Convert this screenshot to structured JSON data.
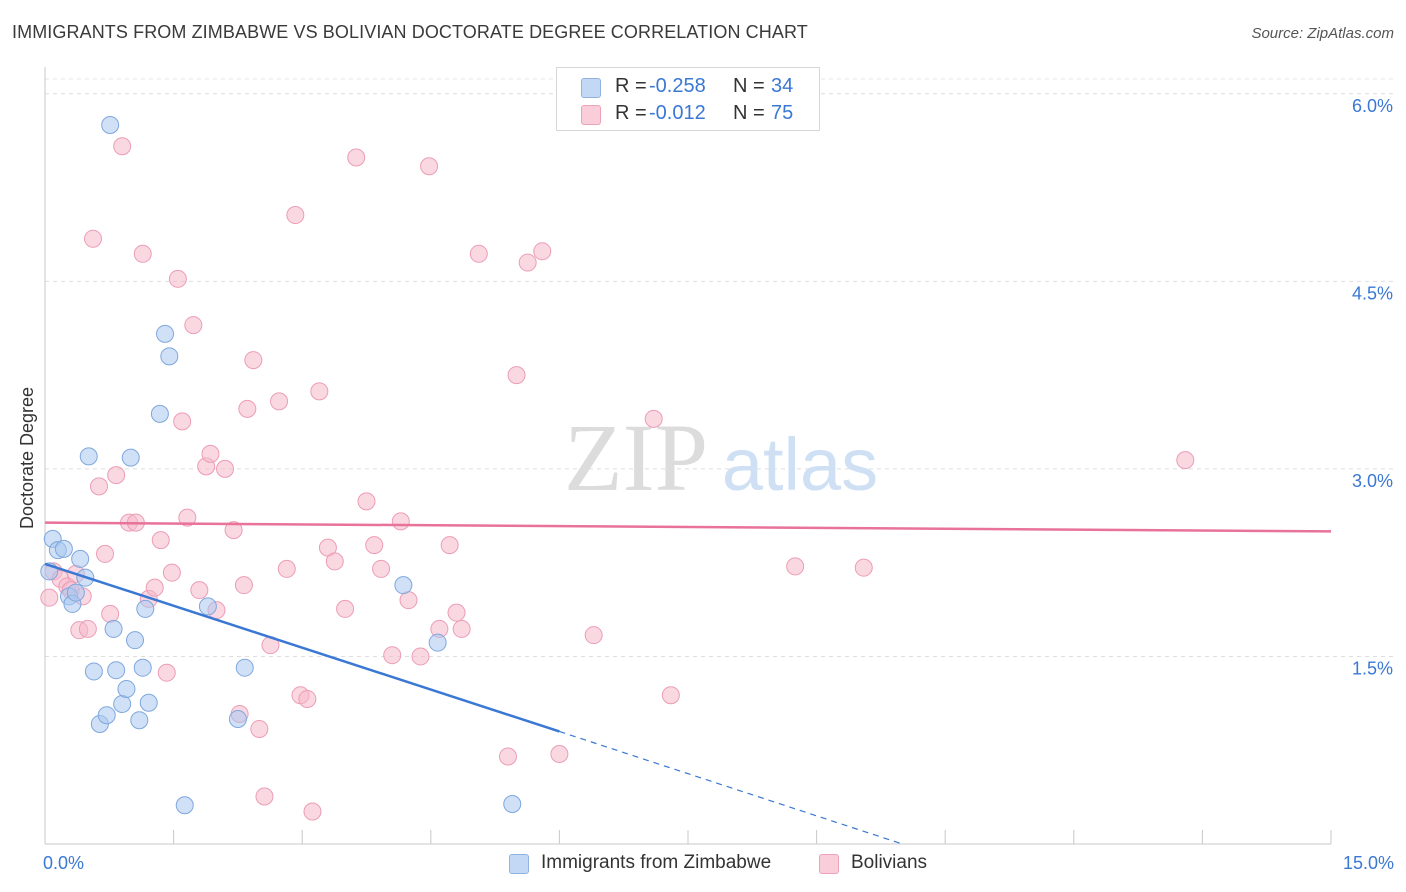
{
  "header": {
    "title": "IMMIGRANTS FROM ZIMBABWE VS BOLIVIAN DOCTORATE DEGREE CORRELATION CHART",
    "source": "Source: ZipAtlas.com"
  },
  "watermark": {
    "zip": "ZIP",
    "atlas": "atlas"
  },
  "legend": {
    "rows": [
      {
        "r_label": "R =",
        "r_value": "-0.258",
        "n_label": "N =",
        "n_value": "34"
      },
      {
        "r_label": "R =",
        "r_value": "-0.012",
        "n_label": "N =",
        "n_value": "75"
      }
    ]
  },
  "chart_data": {
    "type": "scatter",
    "title": "IMMIGRANTS FROM ZIMBABWE VS BOLIVIAN DOCTORATE DEGREE CORRELATION CHART",
    "xlabel": "",
    "ylabel": "Doctorate Degree",
    "xlim": [
      0,
      15
    ],
    "ylim": [
      0,
      6.15
    ],
    "x_tick_labels": [
      "0.0%",
      "15.0%"
    ],
    "y_ticks": [
      1.5,
      3.0,
      4.5,
      6.0
    ],
    "y_tick_labels": [
      "1.5%",
      "3.0%",
      "4.5%",
      "6.0%"
    ],
    "grid": true,
    "colors": {
      "blue_fill": "#a9c8f0",
      "blue_line": "#3a78d4",
      "pink_fill": "#f6b8cb",
      "pink_line": "#e9729a",
      "tick_text": "#3a78d4"
    },
    "series": [
      {
        "name": "Immigrants from Zimbabwe",
        "color": "#a9c8f0",
        "points": [
          [
            0.09,
            2.44
          ],
          [
            0.15,
            2.35
          ],
          [
            0.22,
            2.36
          ],
          [
            0.28,
            1.98
          ],
          [
            0.32,
            1.92
          ],
          [
            0.36,
            2.01
          ],
          [
            0.41,
            2.28
          ],
          [
            0.47,
            2.13
          ],
          [
            0.51,
            3.1
          ],
          [
            0.57,
            1.38
          ],
          [
            0.64,
            0.96
          ],
          [
            0.72,
            1.03
          ],
          [
            0.76,
            5.75
          ],
          [
            0.8,
            1.72
          ],
          [
            0.83,
            1.39
          ],
          [
            0.9,
            1.12
          ],
          [
            0.95,
            1.24
          ],
          [
            1.0,
            3.09
          ],
          [
            1.05,
            1.63
          ],
          [
            1.1,
            0.99
          ],
          [
            1.14,
            1.41
          ],
          [
            1.17,
            1.88
          ],
          [
            1.21,
            1.13
          ],
          [
            1.34,
            3.44
          ],
          [
            1.4,
            4.08
          ],
          [
            1.45,
            3.9
          ],
          [
            1.63,
            0.31
          ],
          [
            1.9,
            1.9
          ],
          [
            2.25,
            1.0
          ],
          [
            2.33,
            1.41
          ],
          [
            4.18,
            2.07
          ],
          [
            4.58,
            1.61
          ],
          [
            5.45,
            0.32
          ],
          [
            0.05,
            2.18
          ]
        ],
        "trend": {
          "x": [
            0.0,
            6.0
          ],
          "y": [
            2.24,
            0.9
          ]
        },
        "trend_dashed": {
          "x": [
            6.0,
            10.0
          ],
          "y": [
            0.9,
            0.0
          ]
        }
      },
      {
        "name": "Bolivians",
        "color": "#f6b8cb",
        "points": [
          [
            0.05,
            1.97
          ],
          [
            0.1,
            2.18
          ],
          [
            0.18,
            2.12
          ],
          [
            0.26,
            2.06
          ],
          [
            0.3,
            2.03
          ],
          [
            0.36,
            2.16
          ],
          [
            0.4,
            1.71
          ],
          [
            0.44,
            1.98
          ],
          [
            0.5,
            1.72
          ],
          [
            0.56,
            4.84
          ],
          [
            0.63,
            2.86
          ],
          [
            0.7,
            2.32
          ],
          [
            0.76,
            1.84
          ],
          [
            0.83,
            2.95
          ],
          [
            0.9,
            5.58
          ],
          [
            0.98,
            2.57
          ],
          [
            1.06,
            2.57
          ],
          [
            1.14,
            4.72
          ],
          [
            1.21,
            1.96
          ],
          [
            1.28,
            2.05
          ],
          [
            1.35,
            2.43
          ],
          [
            1.42,
            1.37
          ],
          [
            1.48,
            2.17
          ],
          [
            1.55,
            4.52
          ],
          [
            1.6,
            3.38
          ],
          [
            1.66,
            2.61
          ],
          [
            1.73,
            4.15
          ],
          [
            1.8,
            2.03
          ],
          [
            1.88,
            3.02
          ],
          [
            1.93,
            3.12
          ],
          [
            2.0,
            1.87
          ],
          [
            2.1,
            3.0
          ],
          [
            2.2,
            2.51
          ],
          [
            2.27,
            1.04
          ],
          [
            2.36,
            3.48
          ],
          [
            2.43,
            3.87
          ],
          [
            2.5,
            0.92
          ],
          [
            2.56,
            0.38
          ],
          [
            2.63,
            1.59
          ],
          [
            2.73,
            3.54
          ],
          [
            2.82,
            2.2
          ],
          [
            2.92,
            5.03
          ],
          [
            2.98,
            1.19
          ],
          [
            3.06,
            1.16
          ],
          [
            3.12,
            0.26
          ],
          [
            3.2,
            3.62
          ],
          [
            3.3,
            2.37
          ],
          [
            3.38,
            2.26
          ],
          [
            3.5,
            1.88
          ],
          [
            3.63,
            5.49
          ],
          [
            3.75,
            2.74
          ],
          [
            3.84,
            2.39
          ],
          [
            3.92,
            2.2
          ],
          [
            4.05,
            1.51
          ],
          [
            4.15,
            2.58
          ],
          [
            4.24,
            1.95
          ],
          [
            4.38,
            1.5
          ],
          [
            4.48,
            5.42
          ],
          [
            4.6,
            1.72
          ],
          [
            4.72,
            2.39
          ],
          [
            4.8,
            1.85
          ],
          [
            4.86,
            1.72
          ],
          [
            5.06,
            4.72
          ],
          [
            5.4,
            0.7
          ],
          [
            5.5,
            3.75
          ],
          [
            5.63,
            4.65
          ],
          [
            5.8,
            4.74
          ],
          [
            6.0,
            0.72
          ],
          [
            6.4,
            1.67
          ],
          [
            7.1,
            3.4
          ],
          [
            7.3,
            1.19
          ],
          [
            8.75,
            2.22
          ],
          [
            9.55,
            2.21
          ],
          [
            13.3,
            3.07
          ],
          [
            2.32,
            2.07
          ]
        ],
        "trend": {
          "x": [
            0.0,
            15.0
          ],
          "y": [
            2.57,
            2.5
          ]
        }
      }
    ]
  },
  "bottom_legend": [
    {
      "label": "Immigrants from Zimbabwe"
    },
    {
      "label": "Bolivians"
    }
  ]
}
